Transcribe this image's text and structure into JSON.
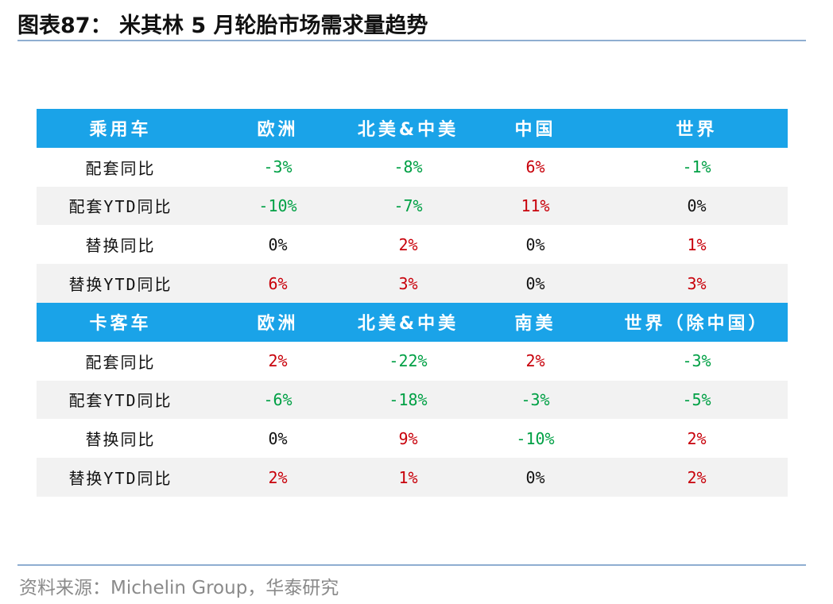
{
  "title": "图表87： 米其林 5 月轮胎市场需求量趋势",
  "colors": {
    "header_bg": "#1aa3e8",
    "negative": "#00a045",
    "positive": "#c8000a",
    "rule": "#8faed1"
  },
  "sections": [
    {
      "header": [
        "乘用车",
        "欧洲",
        "北美&中美",
        "中国",
        "世界"
      ],
      "rows": [
        {
          "label": "配套同比",
          "cells": [
            {
              "v": "-3%",
              "s": "neg"
            },
            {
              "v": "-8%",
              "s": "neg"
            },
            {
              "v": "6%",
              "s": "pos"
            },
            {
              "v": "-1%",
              "s": "neg"
            }
          ]
        },
        {
          "label": "配套YTD同比",
          "cells": [
            {
              "v": "-10%",
              "s": "neg"
            },
            {
              "v": "-7%",
              "s": "neg"
            },
            {
              "v": "11%",
              "s": "pos"
            },
            {
              "v": "0%",
              "s": "zero"
            }
          ]
        },
        {
          "label": "替换同比",
          "cells": [
            {
              "v": "0%",
              "s": "zero"
            },
            {
              "v": "2%",
              "s": "pos"
            },
            {
              "v": "0%",
              "s": "zero"
            },
            {
              "v": "1%",
              "s": "pos"
            }
          ]
        },
        {
          "label": "替换YTD同比",
          "cells": [
            {
              "v": "6%",
              "s": "pos"
            },
            {
              "v": "3%",
              "s": "pos"
            },
            {
              "v": "0%",
              "s": "zero"
            },
            {
              "v": "3%",
              "s": "pos"
            }
          ]
        }
      ]
    },
    {
      "header": [
        "卡客车",
        "欧洲",
        "北美&中美",
        "南美",
        "世界（除中国）"
      ],
      "rows": [
        {
          "label": "配套同比",
          "cells": [
            {
              "v": "2%",
              "s": "pos"
            },
            {
              "v": "-22%",
              "s": "neg"
            },
            {
              "v": "2%",
              "s": "pos"
            },
            {
              "v": "-3%",
              "s": "neg"
            }
          ]
        },
        {
          "label": "配套YTD同比",
          "cells": [
            {
              "v": "-6%",
              "s": "neg"
            },
            {
              "v": "-18%",
              "s": "neg"
            },
            {
              "v": "-3%",
              "s": "neg"
            },
            {
              "v": "-5%",
              "s": "neg"
            }
          ]
        },
        {
          "label": "替换同比",
          "cells": [
            {
              "v": "0%",
              "s": "zero"
            },
            {
              "v": "9%",
              "s": "pos"
            },
            {
              "v": "-10%",
              "s": "neg"
            },
            {
              "v": "2%",
              "s": "pos"
            }
          ]
        },
        {
          "label": "替换YTD同比",
          "cells": [
            {
              "v": "2%",
              "s": "pos"
            },
            {
              "v": "1%",
              "s": "pos"
            },
            {
              "v": "0%",
              "s": "zero"
            },
            {
              "v": "2%",
              "s": "pos"
            }
          ]
        }
      ]
    }
  ],
  "source": "资料来源：Michelin Group，华泰研究"
}
